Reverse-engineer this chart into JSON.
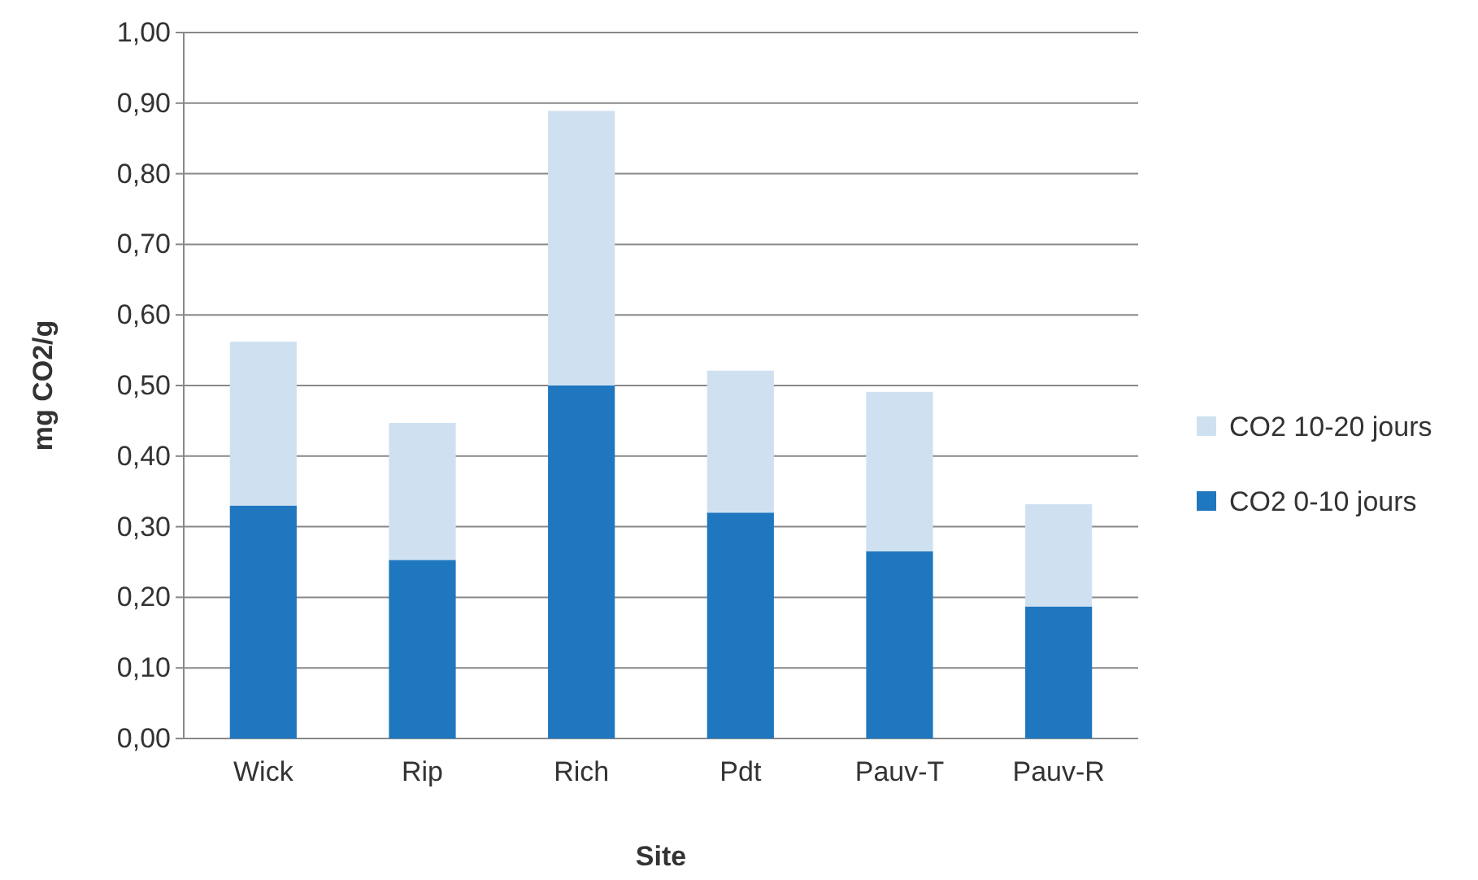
{
  "chart_data": {
    "type": "bar",
    "stacked": true,
    "xlabel": "Site",
    "ylabel": "mg CO2/g",
    "categories": [
      "Wick",
      "Rip",
      "Rich",
      "Pdt",
      "Pauv-T",
      "Pauv-R"
    ],
    "series": [
      {
        "name": "CO2 0-10 jours",
        "color": "#1f77bf",
        "values": [
          0.33,
          0.253,
          0.5,
          0.32,
          0.265,
          0.187
        ]
      },
      {
        "name": "CO2 10-20 jours",
        "color": "#cfe1f1",
        "values": [
          0.232,
          0.194,
          0.389,
          0.201,
          0.226,
          0.145
        ]
      }
    ],
    "ylim": [
      0,
      1
    ],
    "yticks": [
      {
        "value": 0,
        "label": "0,00"
      },
      {
        "value": 0.1,
        "label": "0,10"
      },
      {
        "value": 0.2,
        "label": "0,20"
      },
      {
        "value": 0.3,
        "label": "0,30"
      },
      {
        "value": 0.4,
        "label": "0,40"
      },
      {
        "value": 0.5,
        "label": "0,50"
      },
      {
        "value": 0.6,
        "label": "0,60"
      },
      {
        "value": 0.7,
        "label": "0,70"
      },
      {
        "value": 0.8,
        "label": "0,80"
      },
      {
        "value": 0.9,
        "label": "0,90"
      },
      {
        "value": 1,
        "label": "1,00"
      }
    ],
    "grid": "y",
    "legend": "right"
  }
}
